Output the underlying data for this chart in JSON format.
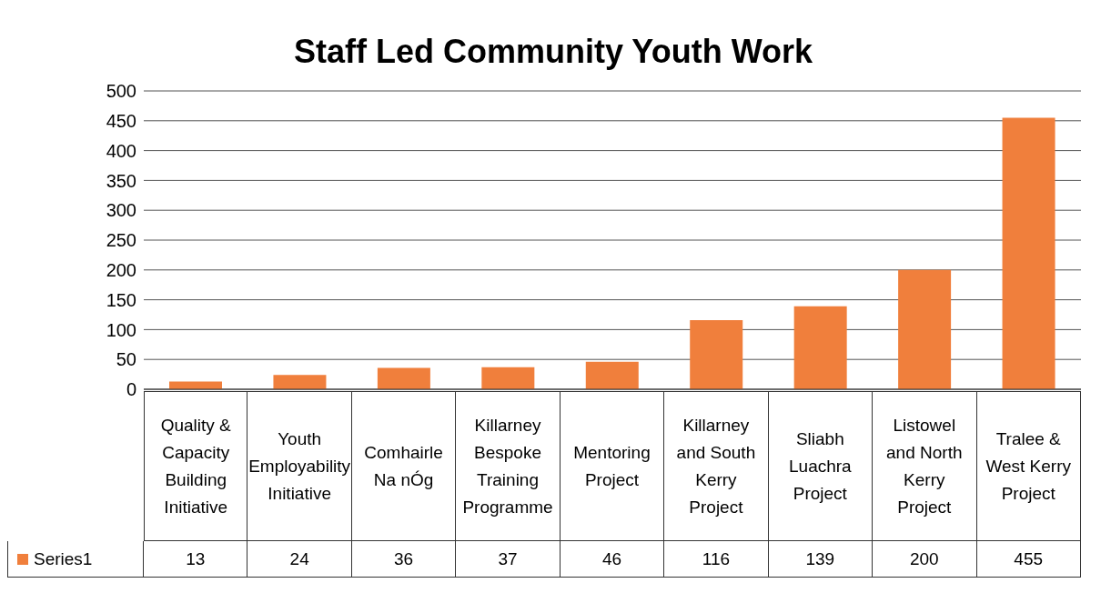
{
  "chart_data": {
    "type": "bar",
    "title": "Staff Led Community Youth Work",
    "categories": [
      "Quality & Capacity Building Initiative",
      "Youth Employability Initiative",
      "Comhairle Na nÓg",
      "Killarney Bespoke Training Programme",
      "Mentoring Project",
      "Killarney and South Kerry Project",
      "Sliabh Luachra Project",
      "Listowel and North Kerry Project",
      "Tralee & West Kerry Project"
    ],
    "series": [
      {
        "name": "Series1",
        "color": "#f07f3c",
        "values": [
          13,
          24,
          36,
          37,
          46,
          116,
          139,
          200,
          455
        ]
      }
    ],
    "ylim": [
      0,
      500
    ],
    "yticks": [
      0,
      50,
      100,
      150,
      200,
      250,
      300,
      350,
      400,
      450,
      500
    ],
    "grid": "y",
    "legend": "bottom",
    "data_labels": true
  }
}
